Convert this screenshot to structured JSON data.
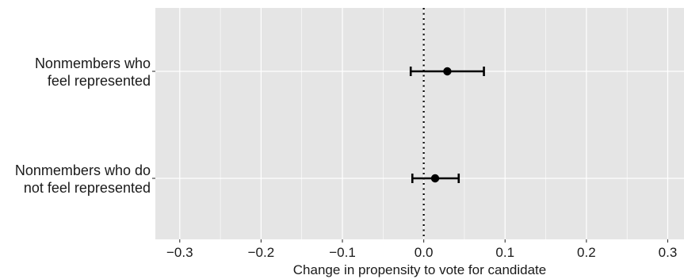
{
  "chart_data": {
    "type": "scatter",
    "subtype": "coefficient-plot-with-error-bars",
    "orientation": "horizontal",
    "xlabel": "Change in propensity to vote for candidate",
    "xlim": [
      -0.33,
      0.32
    ],
    "x_ticks": [
      -0.3,
      -0.2,
      -0.1,
      0.0,
      0.1,
      0.2,
      0.3
    ],
    "x_tick_labels": [
      "−0.3",
      "−0.2",
      "−0.1",
      "0.0",
      "0.1",
      "0.2",
      "0.3"
    ],
    "reference_line": {
      "x": 0,
      "style": "dotted"
    },
    "grid": true,
    "panel_background": "#e5e5e5",
    "grid_color": "#ffffff",
    "point_color": "#000000",
    "categories": [
      {
        "label_lines": [
          "Nonmembers who",
          "feel represented"
        ],
        "estimate": 0.029,
        "ci_low": -0.016,
        "ci_high": 0.074
      },
      {
        "label_lines": [
          "Nonmembers who do",
          "not feel represented"
        ],
        "estimate": 0.014,
        "ci_low": -0.014,
        "ci_high": 0.043
      }
    ]
  }
}
